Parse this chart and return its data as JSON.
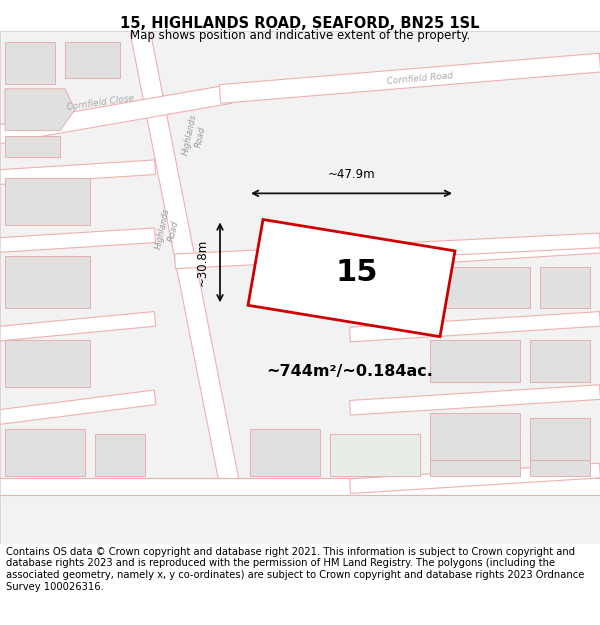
{
  "title": "15, HIGHLANDS ROAD, SEAFORD, BN25 1SL",
  "subtitle": "Map shows position and indicative extent of the property.",
  "footer": "Contains OS data © Crown copyright and database right 2021. This information is subject to Crown copyright and database rights 2023 and is reproduced with the permission of HM Land Registry. The polygons (including the associated geometry, namely x, y co-ordinates) are subject to Crown copyright and database rights 2023 Ordnance Survey 100026316.",
  "map_bg": "#f2f2f2",
  "building_fill": "#e0e0e0",
  "building_stroke": "#e8b0b0",
  "road_fill": "#ffffff",
  "road_stroke": "#f0b0b0",
  "plot_stroke": "#cc0000",
  "plot_fill": "#ffffff",
  "plot_label": "15",
  "area_text": "~744m²/~0.184ac.",
  "dim_width": "~47.9m",
  "dim_height": "~30.8m",
  "title_fontsize": 10.5,
  "subtitle_fontsize": 8.5,
  "footer_fontsize": 7.2,
  "highlight_block_fill": "#e8ede8"
}
